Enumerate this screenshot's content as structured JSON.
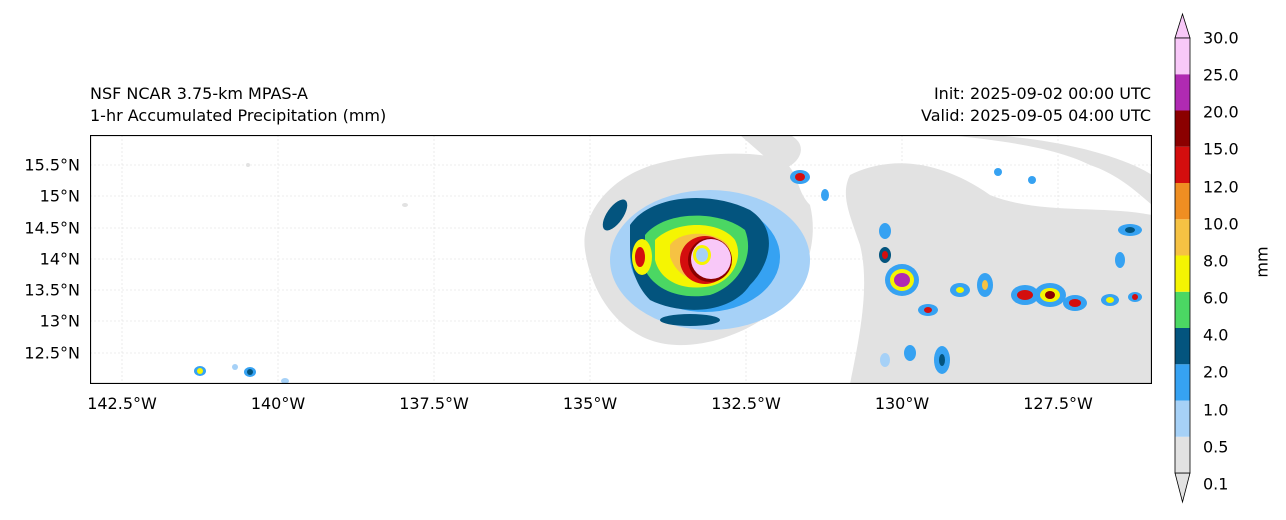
{
  "header": {
    "model": "NSF NCAR 3.75-km MPAS-A",
    "field": "1-hr Accumulated Precipitation (mm)",
    "init": "Init: 2025-09-02 00:00 UTC",
    "valid": "Valid: 2025-09-05 04:00 UTC"
  },
  "map": {
    "lon_range": [
      -143.0,
      -126.0
    ],
    "lat_range": [
      12.0,
      16.0
    ],
    "lat_ticks": [
      "15.5°N",
      "15°N",
      "14.5°N",
      "14°N",
      "13.5°N",
      "13°N",
      "12.5°N"
    ],
    "lon_ticks": [
      "142.5°W",
      "140°W",
      "137.5°W",
      "135°W",
      "132.5°W",
      "130°W",
      "127.5°W"
    ],
    "features": "Hurricane centered near 133.2°W 14.0°N with spiral precipitation bands; scattered convective cells between 130°W and 126°W"
  },
  "colorbar": {
    "unit": "mm",
    "levels": [
      "0.1",
      "0.5",
      "1.0",
      "2.0",
      "4.0",
      "6.0",
      "8.0",
      "10.0",
      "12.0",
      "15.0",
      "20.0",
      "25.0",
      "30.0"
    ],
    "colors": [
      "#e2e2e2",
      "#a6d1f7",
      "#36a2f2",
      "#03547e",
      "#4bd763",
      "#f5f502",
      "#f6c243",
      "#ef8e22",
      "#d40e0e",
      "#8b0000",
      "#b02ab2",
      "#f8c8f8"
    ]
  }
}
